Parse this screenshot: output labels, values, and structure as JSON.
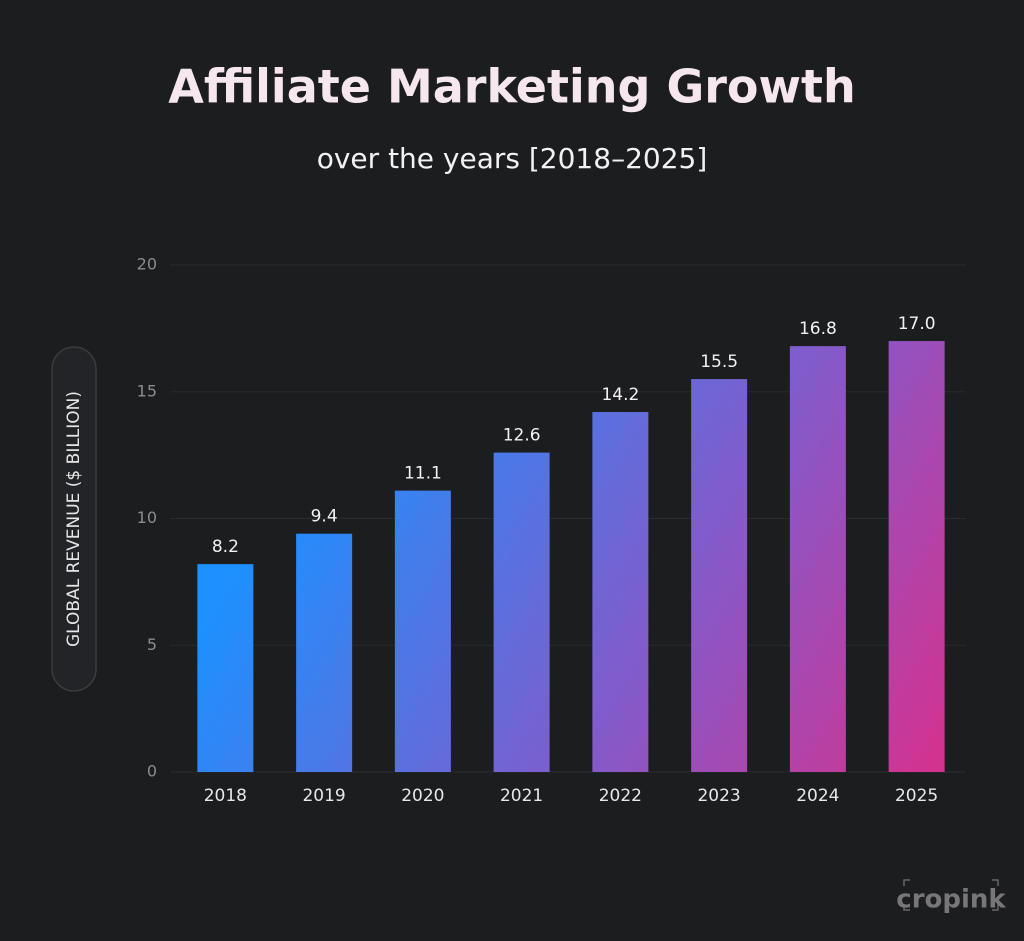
{
  "chart_data": {
    "type": "bar",
    "title": "Affiliate Marketing Growth",
    "subtitle": "over the years [2018–2025]",
    "y_label": "GLOBAL REVENUE ($ BILLION)",
    "categories": [
      "2018",
      "2019",
      "2020",
      "2021",
      "2022",
      "2023",
      "2024",
      "2025"
    ],
    "values": [
      8.2,
      9.4,
      11.1,
      12.6,
      14.2,
      15.5,
      16.8,
      17.0
    ],
    "value_labels": [
      "8.2",
      "9.4",
      "11.1",
      "12.6",
      "14.2",
      "15.5",
      "16.8",
      "17.0"
    ],
    "colors": [
      "#1e90ff",
      "#8a57c6",
      "#e02c86"
    ],
    "ylim": [
      0,
      20
    ],
    "yticks": [
      0,
      5,
      10,
      15,
      20
    ],
    "grid": true,
    "watermark": "cropink"
  }
}
